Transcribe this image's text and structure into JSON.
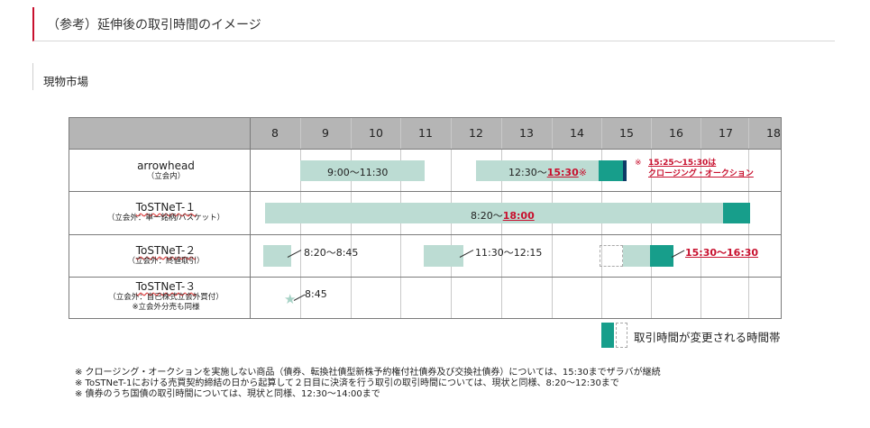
{
  "section_title": "（参考）延伸後の取引時間のイメージ",
  "sub_title": "現物市場",
  "hours": [
    "8",
    "9",
    "10",
    "11",
    "12",
    "13",
    "14",
    "15",
    "16",
    "17",
    "18"
  ],
  "rows": [
    {
      "name": "arrowhead",
      "sub": "（立会内）"
    },
    {
      "name": "ToSTNeT-１",
      "sub": "（立会外：単一銘柄/バスケット）"
    },
    {
      "name": "ToSTNeT-２",
      "sub": "（立会外：終値取引）"
    },
    {
      "name": "ToSTNeT-３",
      "sub": "（立会外：自己株式立会外買付）",
      "sub2": "※立会外分売も同様"
    }
  ],
  "arrowhead": {
    "morning": "9:00～11:30",
    "afternoon_prefix": "12:30～",
    "afternoon_new": "15:30",
    "afternoon_mark": "※",
    "note_mark": "※",
    "note_line1": "15:25～15:30は",
    "note_line2": "クロージング・オークション"
  },
  "tostnet1": {
    "prefix": "8:20～",
    "new": "18:00"
  },
  "tostnet2": {
    "morning": "8:20～8:45",
    "midday": "11:30～12:15",
    "new": "15:30～16:30"
  },
  "tostnet3": {
    "time": "8:45"
  },
  "legend": "取引時間が変更される時間帯",
  "notes": [
    "※  クロージング・オークションを実施しない商品（債券、転換社債型新株予約権付社債券及び交換社債券）については、15:30までザラバが継続",
    "※  ToSTNeT-1における売買契約締結の日から起算して２日目に決済を行う取引の取引時間については、現状と同様、8:20～12:30まで",
    "※  債券のうち国債の取引時間については、現状と同様、12:30～14:00まで"
  ],
  "colors": {
    "accent": "#c8102e",
    "teal": "#179e8b",
    "light": "#bcdcd3",
    "header": "#b5b5b5",
    "navy": "#0d3a66"
  }
}
